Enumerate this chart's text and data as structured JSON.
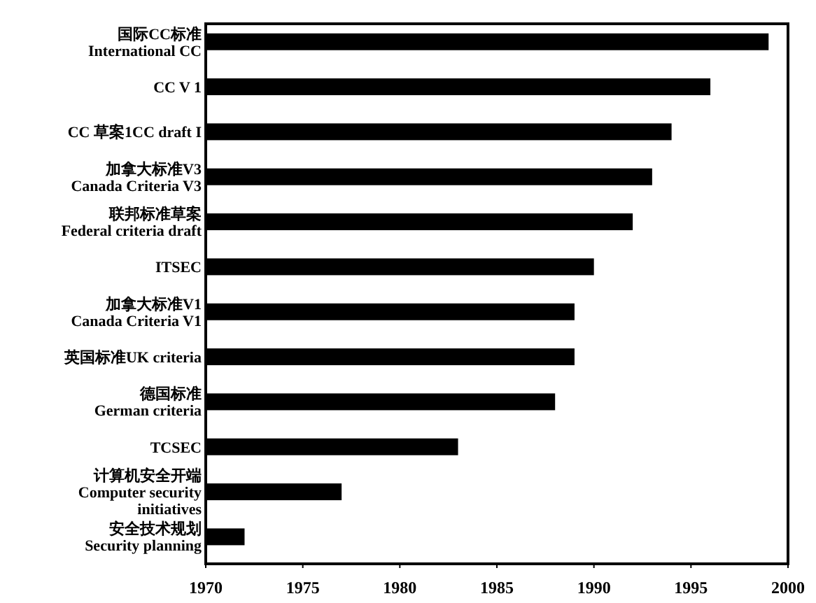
{
  "chart_data": {
    "type": "bar",
    "orientation": "horizontal",
    "color": "#000000",
    "categories": [
      "国际CC标准\nInternational  CC",
      "CC  V 1",
      "CC 草案1CC draft I",
      "加拿大标准V3\nCanada Criteria V3",
      "联邦标准草案\nFederal criteria draft",
      "ITSEC",
      "加拿大标准V1\nCanada Criteria V1",
      "英国标准UK criteria",
      "德国标准\nGerman criteria",
      "TCSEC",
      "计算机安全开端\nComputer security\ninitiatives",
      "安全技术规划\nSecurity planning"
    ],
    "values": [
      1999,
      1996,
      1994,
      1993,
      1992,
      1990,
      1989,
      1989,
      1988,
      1983,
      1977,
      1972
    ],
    "xlim": [
      1970,
      2000
    ],
    "xticks": [
      1970,
      1975,
      1980,
      1985,
      1990,
      1995,
      2000
    ],
    "grid": false
  }
}
